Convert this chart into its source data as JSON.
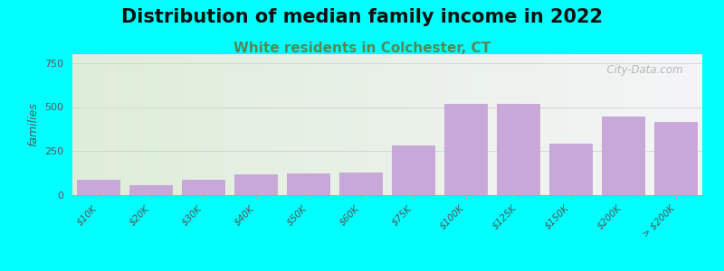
{
  "title": "Distribution of median family income in 2022",
  "subtitle": "White residents in Colchester, CT",
  "ylabel": "families",
  "categories": [
    "$10K",
    "$20K",
    "$30K",
    "$40K",
    "$50K",
    "$60K",
    "$75K",
    "$100K",
    "$125K",
    "$150K",
    "$200K",
    "> $200K"
  ],
  "values": [
    85,
    55,
    85,
    120,
    125,
    130,
    280,
    520,
    520,
    290,
    445,
    415
  ],
  "bar_color": "#c8a8d8",
  "ylim": [
    0,
    800
  ],
  "yticks": [
    0,
    250,
    500,
    750
  ],
  "background_color": "#00ffff",
  "title_fontsize": 15,
  "subtitle_fontsize": 11,
  "subtitle_color": "#558855",
  "watermark": "City-Data.com",
  "bar_width": 0.82
}
